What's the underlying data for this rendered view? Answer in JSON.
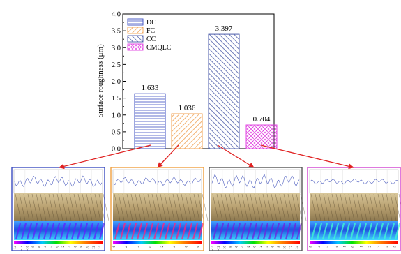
{
  "chart_data": {
    "type": "bar",
    "title": "",
    "xlabel": "",
    "ylabel": "Surface roughness (μm)",
    "ylim": [
      0.0,
      4.0
    ],
    "yticks": [
      "0.0",
      "0.5",
      "1.0",
      "1.5",
      "2.0",
      "2.5",
      "3.0",
      "3.5",
      "4.0"
    ],
    "grid": false,
    "legend_position": "top-left",
    "categories": [
      "DC",
      "FC",
      "CC",
      "CMQLC"
    ],
    "values": [
      1.633,
      1.036,
      3.397,
      0.704
    ],
    "value_labels": [
      "1.633",
      "1.036",
      "3.397",
      "0.704"
    ],
    "series": [
      {
        "name": "DC",
        "value": 1.633,
        "color": "#3b4cc0",
        "hatch": "horizontal"
      },
      {
        "name": "FC",
        "value": 1.036,
        "color": "#f0a050",
        "hatch": "diagonal-up"
      },
      {
        "name": "CC",
        "value": 3.397,
        "color": "#4a5aa8",
        "hatch": "diagonal-down"
      },
      {
        "name": "CMQLC",
        "value": 0.704,
        "color": "#e040e0",
        "hatch": "crosshatch"
      }
    ]
  },
  "arrow_color": "#e02020",
  "panels": [
    {
      "border_color": "#3b4cc0",
      "scale_labels": [
        "-14",
        "-12",
        "-10",
        "-8",
        "-6",
        "-4",
        "-2",
        "0",
        "2",
        "4",
        "6",
        "8",
        "10",
        "12",
        "14"
      ]
    },
    {
      "border_color": "#f0a040",
      "scale_labels": [
        "-6",
        "-4",
        "-2",
        "0",
        "2",
        "4",
        "6",
        "8"
      ]
    },
    {
      "border_color": "#555555",
      "scale_labels": [
        "-14",
        "-12",
        "-10",
        "-8",
        "-6",
        "-4",
        "-2",
        "0",
        "2",
        "4",
        "6",
        "8",
        "10",
        "12",
        "14"
      ]
    },
    {
      "border_color": "#d040d0",
      "scale_labels": [
        "-5",
        "-4",
        "-3",
        "-2",
        "-1",
        "0",
        "1",
        "2",
        "3",
        "4",
        "5"
      ]
    }
  ]
}
